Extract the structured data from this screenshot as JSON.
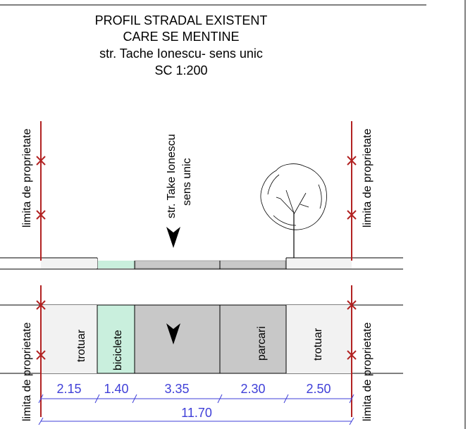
{
  "title": {
    "line1": "PROFIL STRADAL EXISTENT",
    "line2": "CARE SE MENTINE",
    "line3": "str. Tache Ionescu- sens unic",
    "line4": "SC 1:200"
  },
  "street_label": {
    "line1": "str. Take Ionescu",
    "line2": "sens unic"
  },
  "property_limit_label": "limita de proprietate",
  "segments": [
    {
      "label": "trotuar",
      "width": "2.15",
      "color": "#f2f2f2"
    },
    {
      "label": "biciclete",
      "width": "1.40",
      "color": "#c9efdd"
    },
    {
      "label": "",
      "width": "3.35",
      "color": "#c8c8c8"
    },
    {
      "label": "parcari",
      "width": "2.30",
      "color": "#c8c8c8"
    },
    {
      "label": "trotuar",
      "width": "2.50",
      "color": "#f2f2f2"
    }
  ],
  "total_width": "11.70",
  "colors": {
    "property_line": "#b22222",
    "dimension": "#3f3fd8",
    "bike_lane": "#c9efdd",
    "roadway": "#c8c8c8",
    "sidewalk": "#f2f2f2"
  },
  "icons": {
    "direction": "arrow-down-icon",
    "tree": "tree-icon"
  }
}
